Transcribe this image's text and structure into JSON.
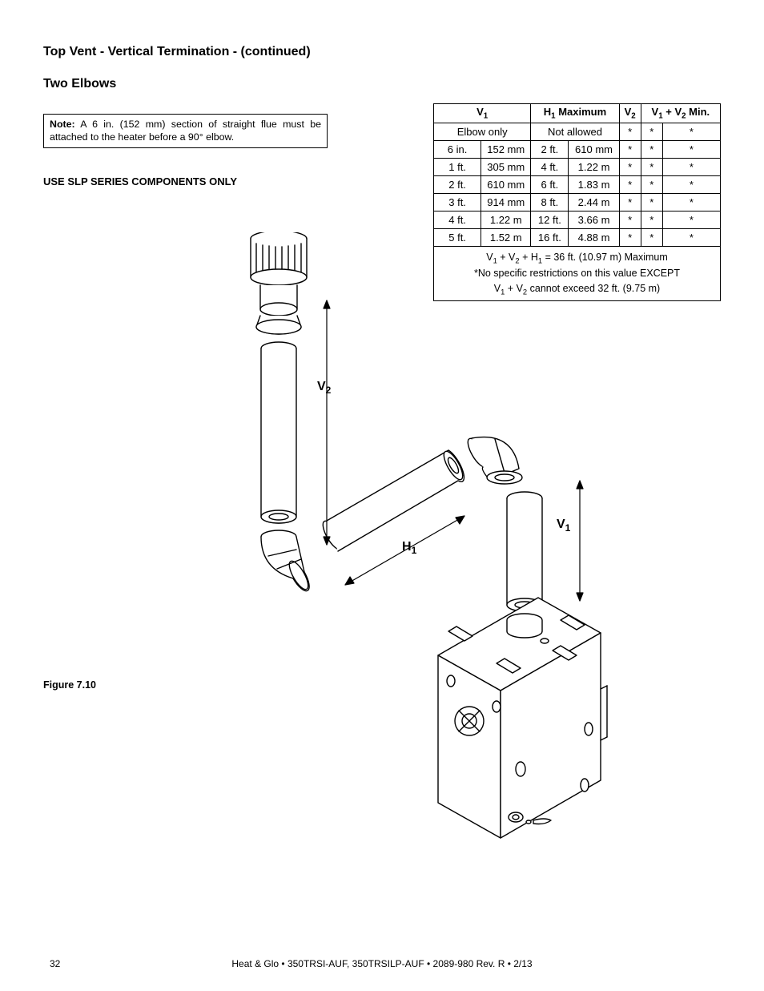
{
  "section_title": "Top Vent - Vertical Termination  - (continued)",
  "subsection_title": "Two Elbows",
  "note": {
    "label": "Note:",
    "text": " A 6 in. (152 mm) section of straight flue must be attached to the heater before a 90° elbow."
  },
  "components_warning": "USE SLP SERIES COMPONENTS ONLY",
  "figure_caption": "Figure 7.10",
  "dim_labels": {
    "v1": "V",
    "v1_sub": "1",
    "v2": "V",
    "v2_sub": "2",
    "h1": "H",
    "h1_sub": "1"
  },
  "table": {
    "headers": {
      "v1": "V",
      "v1_sub": "1",
      "h1_max": "H",
      "h1_max_sub": "1",
      "h1_max_suffix": " Maximum",
      "v2": "V",
      "v2_sub": "2",
      "v1v2_min_a": "V",
      "v1v2_min_a_sub": "1",
      "v1v2_min_plus": " + V",
      "v1v2_min_b_sub": "2",
      "v1v2_min_suffix": " Min."
    },
    "rows": [
      {
        "v1_a": "Elbow only",
        "v1_b": "",
        "h1a": "Not allowed",
        "h1b": "",
        "v2": "*",
        "min_a": "*",
        "min_b": "*"
      },
      {
        "v1_a": "6 in.",
        "v1_b": "152 mm",
        "h1a": "2 ft.",
        "h1b": "610 mm",
        "v2": "*",
        "min_a": "*",
        "min_b": "*"
      },
      {
        "v1_a": "1 ft.",
        "v1_b": "305 mm",
        "h1a": "4 ft.",
        "h1b": "1.22 m",
        "v2": "*",
        "min_a": "*",
        "min_b": "*"
      },
      {
        "v1_a": "2 ft.",
        "v1_b": "610 mm",
        "h1a": "6 ft.",
        "h1b": "1.83 m",
        "v2": "*",
        "min_a": "*",
        "min_b": "*"
      },
      {
        "v1_a": "3 ft.",
        "v1_b": "914 mm",
        "h1a": "8 ft.",
        "h1b": "2.44 m",
        "v2": "*",
        "min_a": "*",
        "min_b": "*"
      },
      {
        "v1_a": "4 ft.",
        "v1_b": "1.22 m",
        "h1a": "12 ft.",
        "h1b": "3.66 m",
        "v2": "*",
        "min_a": "*",
        "min_b": "*"
      },
      {
        "v1_a": "5 ft.",
        "v1_b": "1.52 m",
        "h1a": "16 ft.",
        "h1b": "4.88 m",
        "v2": "*",
        "min_a": "*",
        "min_b": "*"
      }
    ],
    "footer_lines": {
      "l1_pre": "V",
      "l1_sub1": "1",
      "l1_mid1": " + V",
      "l1_sub2": "2",
      "l1_mid2": " + H",
      "l1_sub3": "1",
      "l1_post": " = 36 ft. (10.97 m) Maximum",
      "l2": "*No specific restrictions on this value EXCEPT",
      "l3_pre": "V",
      "l3_sub1": "1",
      "l3_mid": " + V",
      "l3_sub2": "2",
      "l3_post": " cannot exceed 32 ft. (9.75 m)"
    },
    "col_widths": [
      "59",
      "62",
      "47",
      "63",
      "27",
      "27",
      "72"
    ],
    "border_color": "#000000",
    "background": "#ffffff",
    "fontsize": 13
  },
  "footer": {
    "page_number": "32",
    "text": "Heat & Glo  •   350TRSI-AUF, 350TRSILP-AUF  •  2089-980 Rev. R  •  2/13"
  },
  "diagram": {
    "stroke": "#000000",
    "stroke_width": 1.4,
    "fill": "#ffffff"
  }
}
